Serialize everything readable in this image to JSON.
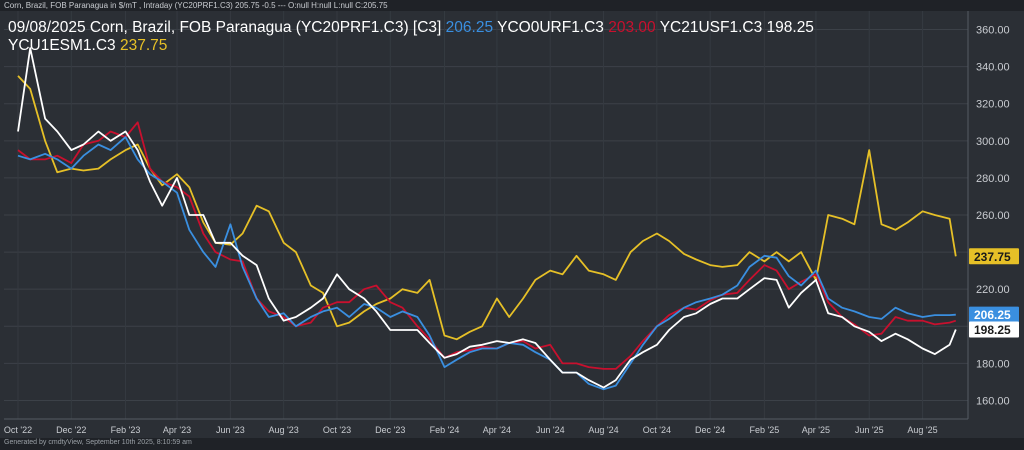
{
  "header_text": "Corn, Brazil, FOB Paranagua in $/mT , Intraday (YC20PRF1.C3) 205.75 -0.5 --- O:null H:null L:null C:205.75",
  "footer_text": "Generated by cmdtyView, September 10th 2025, 8:10:59 am",
  "title": {
    "line1_prefix": "09/08/2025 Corn, Brazil, FOB Paranagua (YC20PRF1.C3) [C3]",
    "s1_value": "206.25",
    "s2_label": "YCO0URF1.C3",
    "s2_value": "203.00",
    "s3_label": "YC21USF1.C3 198.25",
    "s4_label": "YCU1ESM1.C3",
    "s4_value": "237.75"
  },
  "chart_data": {
    "type": "line",
    "x": [
      "2022-10-01",
      "2022-10-15",
      "2022-11-01",
      "2022-11-15",
      "2022-12-01",
      "2022-12-15",
      "2023-01-01",
      "2023-01-15",
      "2023-02-01",
      "2023-02-15",
      "2023-03-01",
      "2023-03-15",
      "2023-04-01",
      "2023-04-15",
      "2023-05-01",
      "2023-05-15",
      "2023-06-01",
      "2023-06-15",
      "2023-07-01",
      "2023-07-15",
      "2023-08-01",
      "2023-08-15",
      "2023-09-01",
      "2023-09-15",
      "2023-10-01",
      "2023-10-15",
      "2023-11-01",
      "2023-11-15",
      "2023-12-01",
      "2023-12-15",
      "2024-01-01",
      "2024-01-15",
      "2024-02-01",
      "2024-02-15",
      "2024-03-01",
      "2024-03-15",
      "2024-04-01",
      "2024-04-15",
      "2024-05-01",
      "2024-05-15",
      "2024-06-01",
      "2024-06-15",
      "2024-07-01",
      "2024-07-15",
      "2024-08-01",
      "2024-08-15",
      "2024-09-01",
      "2024-09-15",
      "2024-10-01",
      "2024-10-15",
      "2024-11-01",
      "2024-11-15",
      "2024-12-01",
      "2024-12-15",
      "2025-01-01",
      "2025-01-15",
      "2025-02-01",
      "2025-02-15",
      "2025-03-01",
      "2025-03-15",
      "2025-04-01",
      "2025-04-15",
      "2025-05-01",
      "2025-05-15",
      "2025-06-01",
      "2025-06-15",
      "2025-07-01",
      "2025-07-15",
      "2025-08-01",
      "2025-08-15",
      "2025-09-01",
      "2025-09-08"
    ],
    "series": [
      {
        "name": "YC20PRF1.C3",
        "color": "#3a8fe0",
        "values": [
          292,
          290,
          293,
          290,
          285,
          292,
          298,
          295,
          302,
          290,
          282,
          278,
          272,
          252,
          240,
          232,
          255,
          232,
          215,
          205,
          207,
          200,
          205,
          208,
          210,
          205,
          212,
          210,
          205,
          208,
          205,
          195,
          178,
          182,
          186,
          188,
          188,
          191,
          190,
          186,
          182,
          175,
          175,
          169,
          166,
          168,
          180,
          190,
          200,
          204,
          210,
          213,
          215,
          217,
          222,
          232,
          238,
          237,
          227,
          222,
          230,
          215,
          210,
          208,
          205,
          204,
          210,
          207,
          205,
          206,
          206,
          206.25
        ]
      },
      {
        "name": "YCO0URF1.C3",
        "color": "#c8102e",
        "values": [
          295,
          290,
          290,
          292,
          288,
          298,
          300,
          305,
          302,
          310,
          285,
          278,
          275,
          270,
          250,
          240,
          236,
          235,
          215,
          208,
          205,
          200,
          202,
          210,
          213,
          213,
          220,
          222,
          213,
          210,
          200,
          193,
          183,
          186,
          187,
          189,
          188,
          191,
          192,
          188,
          190,
          180,
          180,
          178,
          177,
          177,
          184,
          192,
          200,
          206,
          210,
          209,
          214,
          217,
          218,
          225,
          233,
          230,
          220,
          224,
          228,
          213,
          205,
          201,
          195,
          196,
          205,
          203,
          203,
          201,
          202,
          203
        ]
      },
      {
        "name": "YC21USF1.C3",
        "color": "#ffffff",
        "values": [
          305,
          350,
          312,
          305,
          295,
          298,
          305,
          300,
          305,
          295,
          278,
          265,
          280,
          260,
          260,
          245,
          245,
          238,
          233,
          215,
          203,
          205,
          210,
          215,
          228,
          220,
          215,
          208,
          198,
          198,
          198,
          191,
          183,
          185,
          189,
          190,
          192,
          191,
          193,
          191,
          182,
          175,
          175,
          171,
          167,
          171,
          182,
          186,
          190,
          198,
          205,
          207,
          212,
          215,
          215,
          220,
          226,
          225,
          210,
          218,
          225,
          207,
          205,
          200,
          197,
          192,
          196,
          193,
          188,
          185,
          190,
          198.25
        ]
      },
      {
        "name": "YCU1ESM1.C3",
        "color": "#e6c027",
        "values": [
          335,
          328,
          300,
          283,
          285,
          284,
          285,
          290,
          295,
          298,
          285,
          276,
          282,
          275,
          256,
          245,
          244,
          250,
          265,
          262,
          245,
          240,
          222,
          218,
          200,
          202,
          208,
          212,
          215,
          220,
          218,
          225,
          195,
          193,
          197,
          200,
          215,
          205,
          215,
          225,
          230,
          228,
          238,
          230,
          228,
          225,
          240,
          246,
          250,
          246,
          239,
          236,
          233,
          232,
          233,
          240,
          235,
          240,
          235,
          240,
          225,
          260,
          258,
          255,
          295,
          255,
          252,
          256,
          262,
          260,
          258,
          237.75
        ]
      }
    ],
    "y_ticks": [
      160,
      180,
      200,
      220,
      240,
      260,
      280,
      300,
      320,
      340,
      360
    ],
    "x_tick_labels": [
      "Oct '22",
      "Dec '22",
      "Feb '23",
      "Apr '23",
      "Jun '23",
      "Aug '23",
      "Oct '23",
      "Dec '23",
      "Feb '24",
      "Apr '24",
      "Jun '24",
      "Aug '24",
      "Oct '24",
      "Dec '24",
      "Feb '25",
      "Apr '25",
      "Jun '25",
      "Aug '25"
    ],
    "y_axis_position": "right",
    "grid": true,
    "last_value_labels": [
      {
        "series": "YCU1ESM1.C3",
        "text": "237.75",
        "bg": "#e6c027",
        "fg": "#1a1a1a",
        "value": 237.75
      },
      {
        "series": "YC20PRF1.C3",
        "text": "206.25",
        "bg": "#3a8fe0",
        "fg": "#ffffff",
        "value": 206.25
      },
      {
        "series": "YC21USF1.C3",
        "text": "198.25",
        "bg": "#ffffff",
        "fg": "#1a1a1a",
        "value": 198.25
      }
    ]
  }
}
